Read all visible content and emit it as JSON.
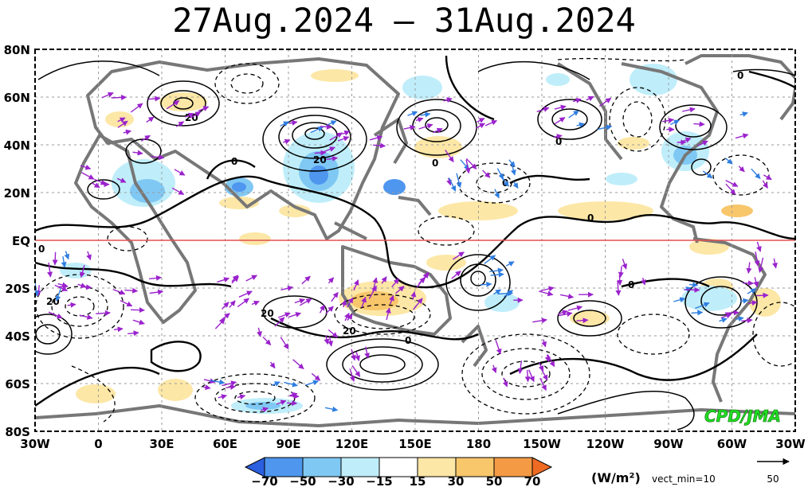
{
  "title": "27Aug.2024 – 31Aug.2024",
  "map": {
    "lon_labels": [
      "30W",
      "0",
      "30E",
      "60E",
      "90E",
      "120E",
      "150E",
      "180",
      "150W",
      "120W",
      "90W",
      "60W",
      "30W"
    ],
    "lat_labels": [
      "80N",
      "60N",
      "40N",
      "20N",
      "EQ",
      "20S",
      "40S",
      "60S",
      "80S"
    ],
    "contour_labels": [
      "20",
      "20",
      "0",
      "20",
      "0",
      "0",
      "0",
      "0",
      "0",
      "0",
      "0",
      "20",
      "0",
      "20"
    ],
    "credit": "CPD/JMA",
    "credit_color": "#22dd22"
  },
  "colorbar": {
    "ticks": [
      "−70",
      "−50",
      "−30",
      "−15",
      "15",
      "30",
      "50",
      "70"
    ],
    "colors": [
      "#2a5fe0",
      "#4e96ee",
      "#80c8f4",
      "#bfeefa",
      "#ffffff",
      "#fde7a6",
      "#f8c66b",
      "#f49a45",
      "#ef6a22"
    ],
    "unit": "(W/m²)",
    "vect_min": "vect_min=10",
    "ref_vector": "50"
  },
  "style": {
    "equator_color": "#e05050",
    "coast_color": "#777777",
    "vector_color": "#9a22cc",
    "strong_vector_color": "#2f7de0"
  }
}
